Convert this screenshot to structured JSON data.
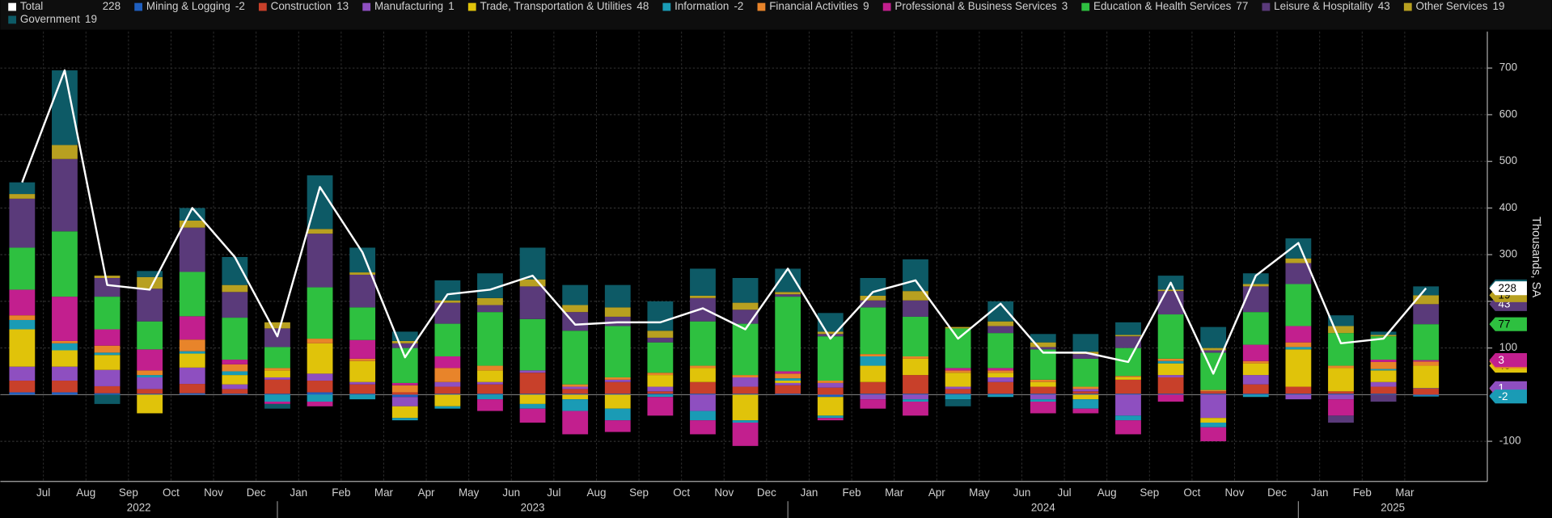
{
  "chart_data": {
    "type": "bar",
    "stacked": true,
    "axis_label": "Thousands, SA",
    "categories": [
      null,
      "Jul",
      "Aug",
      "Sep",
      "Oct",
      "Nov",
      "Dec",
      "Jan",
      "Feb",
      "Mar",
      "Apr",
      "May",
      "Jun",
      "Jul",
      "Aug",
      "Sep",
      "Oct",
      "Nov",
      "Dec",
      "Jan",
      "Feb",
      "Mar",
      "Apr",
      "May",
      "Jun",
      "Jul",
      "Aug",
      "Sep",
      "Oct",
      "Nov",
      "Dec",
      "Jan",
      "Feb",
      "Mar"
    ],
    "years": [
      "2022",
      "2023",
      "2024",
      "2025"
    ],
    "ylim": [
      -186,
      778
    ],
    "yticks": [
      -100,
      100,
      200,
      300,
      400,
      500,
      600,
      700
    ],
    "grid": true,
    "legend": "top",
    "total": {
      "name": "Total",
      "color": "#ffffff",
      "values": [
        455,
        695,
        235,
        225,
        400,
        295,
        125,
        445,
        305,
        80,
        215,
        225,
        255,
        150,
        155,
        155,
        185,
        140,
        270,
        120,
        220,
        245,
        120,
        195,
        90,
        90,
        70,
        240,
        45,
        255,
        325,
        110,
        120,
        228
      ]
    },
    "series": [
      {
        "name": "Mining & Logging",
        "color": "#1f5fbf",
        "values": [
          5,
          5,
          3,
          2,
          3,
          2,
          2,
          5,
          2,
          -5,
          2,
          2,
          2,
          2,
          2,
          2,
          2,
          2,
          2,
          -5,
          2,
          2,
          2,
          2,
          2,
          2,
          2,
          2,
          2,
          2,
          2,
          2,
          2,
          -2
        ]
      },
      {
        "name": "Construction",
        "color": "#c8402a",
        "values": [
          25,
          25,
          15,
          10,
          20,
          10,
          30,
          25,
          20,
          5,
          15,
          20,
          45,
          10,
          25,
          5,
          25,
          15,
          18,
          15,
          25,
          40,
          10,
          25,
          15,
          5,
          30,
          35,
          5,
          20,
          15,
          5,
          15,
          13
        ]
      },
      {
        "name": "Manufacturing",
        "color": "#8e4fc0",
        "values": [
          30,
          30,
          35,
          25,
          35,
          10,
          5,
          15,
          5,
          -20,
          10,
          5,
          5,
          5,
          5,
          10,
          -35,
          20,
          5,
          10,
          -10,
          -10,
          5,
          10,
          -10,
          5,
          -45,
          5,
          -50,
          20,
          -10,
          -10,
          10,
          1
        ]
      },
      {
        "name": "Trade, Transportation & Utilities",
        "color": "#e0c30a",
        "values": [
          80,
          35,
          32,
          -40,
          30,
          20,
          15,
          65,
          45,
          -25,
          -25,
          25,
          -20,
          -10,
          -30,
          25,
          30,
          -55,
          5,
          -40,
          35,
          35,
          30,
          10,
          10,
          -10,
          5,
          25,
          -10,
          25,
          80,
          50,
          25,
          48
        ]
      },
      {
        "name": "Information",
        "color": "#1a9bb5",
        "values": [
          20,
          15,
          5,
          5,
          5,
          8,
          -15,
          -15,
          -10,
          -5,
          -5,
          -10,
          -10,
          -25,
          -25,
          -5,
          -20,
          -5,
          5,
          -5,
          20,
          -5,
          -10,
          -5,
          -5,
          -20,
          -10,
          5,
          -10,
          -5,
          5,
          0,
          3,
          -2
        ]
      },
      {
        "name": "Financial Activities",
        "color": "#e8842a",
        "values": [
          10,
          5,
          15,
          10,
          25,
          15,
          5,
          10,
          5,
          15,
          30,
          10,
          0,
          5,
          5,
          5,
          5,
          5,
          10,
          5,
          5,
          5,
          5,
          5,
          5,
          5,
          3,
          5,
          3,
          5,
          10,
          5,
          15,
          9
        ]
      },
      {
        "name": "Professional & Business Services",
        "color": "#c21f8e",
        "values": [
          55,
          95,
          35,
          45,
          50,
          10,
          -5,
          -10,
          40,
          5,
          25,
          -25,
          -30,
          -50,
          -25,
          -40,
          -30,
          -50,
          5,
          -5,
          -20,
          -30,
          5,
          5,
          -25,
          -10,
          -30,
          -15,
          -30,
          35,
          35,
          -35,
          5,
          3
        ]
      },
      {
        "name": "Education & Health Services",
        "color": "#2ec040",
        "values": [
          90,
          140,
          70,
          60,
          95,
          90,
          45,
          110,
          70,
          75,
          70,
          115,
          110,
          115,
          110,
          65,
          95,
          110,
          160,
          95,
          100,
          85,
          85,
          75,
          65,
          60,
          60,
          95,
          80,
          70,
          90,
          70,
          50,
          77
        ]
      },
      {
        "name": "Leisure & Hospitality",
        "color": "#5a3a7a",
        "values": [
          105,
          155,
          40,
          70,
          95,
          55,
          40,
          115,
          70,
          10,
          45,
          15,
          70,
          40,
          20,
          10,
          50,
          30,
          5,
          5,
          15,
          35,
          0,
          15,
          5,
          10,
          25,
          50,
          5,
          55,
          45,
          -15,
          -15,
          43
        ]
      },
      {
        "name": "Other Services",
        "color": "#b8a020",
        "values": [
          10,
          30,
          5,
          25,
          15,
          15,
          13,
          10,
          5,
          5,
          5,
          15,
          15,
          15,
          20,
          15,
          5,
          15,
          5,
          5,
          10,
          20,
          3,
          10,
          10,
          5,
          3,
          3,
          5,
          5,
          10,
          15,
          3,
          19
        ]
      },
      {
        "name": "Government",
        "color": "#0d5a66",
        "values": [
          25,
          160,
          -20,
          13,
          27,
          60,
          -10,
          115,
          53,
          20,
          43,
          53,
          68,
          43,
          48,
          63,
          58,
          53,
          50,
          40,
          38,
          68,
          -15,
          43,
          18,
          38,
          27,
          30,
          45,
          23,
          43,
          23,
          7,
          19
        ]
      }
    ]
  }
}
